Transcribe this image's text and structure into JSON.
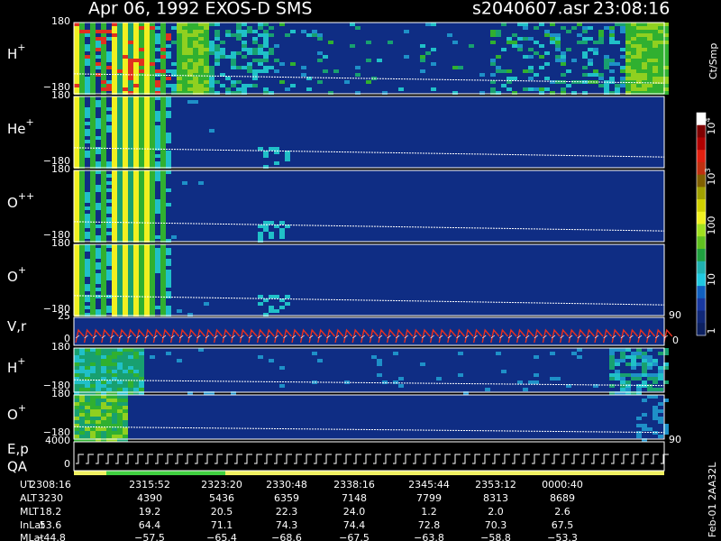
{
  "header": {
    "title": "Apr 06, 1992   EXOS-D SMS",
    "file": "s2040607.asr",
    "time": "23:08:16"
  },
  "panels": [
    {
      "label": "H",
      "charge": "+",
      "ytick_top": "180",
      "ytick_bottom": "−180"
    },
    {
      "label": "He",
      "charge": "+",
      "ytick_top": "180",
      "ytick_bottom": "−180"
    },
    {
      "label": "O",
      "charge": "++",
      "ytick_top": "180",
      "ytick_bottom": "−180"
    },
    {
      "label": "O",
      "charge": "+",
      "ytick_top": "180",
      "ytick_bottom": "−180"
    },
    {
      "label": "V,r",
      "ytick_top": "25",
      "ytick_bottom": "0",
      "right_top": "90",
      "right_bottom": "0"
    },
    {
      "label": "H",
      "charge": "+",
      "ytick_top": "180",
      "ytick_bottom": "−180"
    },
    {
      "label": "O",
      "charge": "+",
      "ytick_top": "180",
      "ytick_bottom": "−180"
    },
    {
      "label": "E,p",
      "label2": "QA",
      "ytick_top": "4000",
      "ytick_bottom": "0",
      "right_top": "90"
    }
  ],
  "colorbar": {
    "unit": "Ct/Smp",
    "labels": [
      {
        "base": "10",
        "exp": "4"
      },
      {
        "base": "10",
        "exp": "3"
      },
      {
        "base": "100"
      },
      {
        "base": "10"
      },
      {
        "base": "1"
      }
    ]
  },
  "orbit": {
    "rows": [
      {
        "name": "UT",
        "values": [
          "2308:16",
          "2315:52",
          "2323:20",
          "2330:48",
          "2338:16",
          "2345:44",
          "2353:12",
          "0000:40"
        ]
      },
      {
        "name": "ALT",
        "values": [
          "3230",
          "4390",
          "5436",
          "6359",
          "7148",
          "7799",
          "8313",
          "8689"
        ]
      },
      {
        "name": "MLT",
        "values": [
          "18.2",
          "19.2",
          "20.5",
          "22.3",
          "24.0",
          "1.2",
          "2.0",
          "2.6"
        ]
      },
      {
        "name": "InLat",
        "values": [
          "53.6",
          "64.4",
          "71.1",
          "74.3",
          "74.4",
          "72.8",
          "70.3",
          "67.5"
        ]
      },
      {
        "name": "MLat",
        "values": [
          "−44.8",
          "−57.5",
          "−65.4",
          "−68.6",
          "−67.5",
          "−63.8",
          "−58.8",
          "−53.3"
        ]
      }
    ]
  },
  "footer": "Feb-01 2AA32L"
}
